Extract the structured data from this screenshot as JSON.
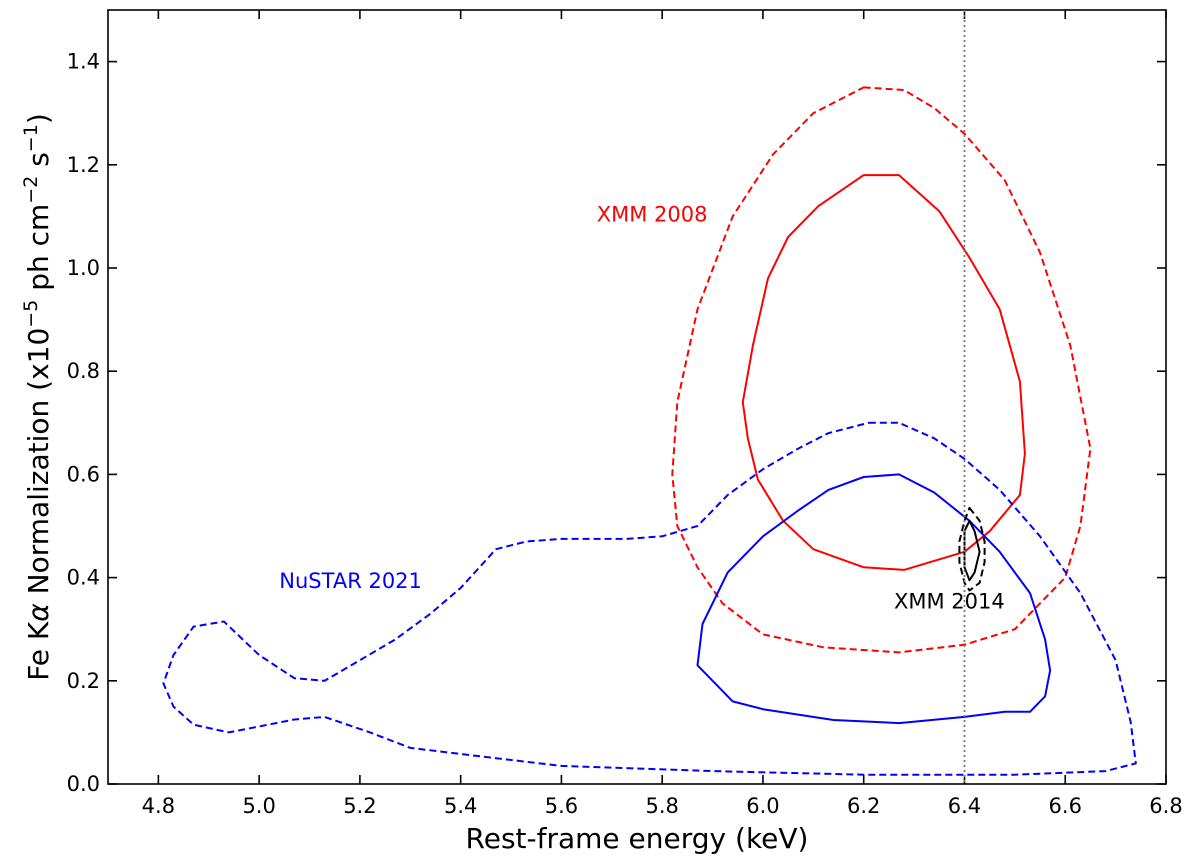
{
  "chart_data": {
    "type": "contour",
    "title": "",
    "xlabel": "Rest-frame energy (keV)",
    "ylabel_parts": {
      "prefix": "Fe K",
      "alpha": "α",
      "middle": " Normalization (x10",
      "exp1": "−5",
      "unit1": " ph cm",
      "exp2": "−2",
      "unit2": " s",
      "exp3": "−1",
      "suffix": ")"
    },
    "xlim": [
      4.7,
      6.8
    ],
    "ylim": [
      0.0,
      1.5
    ],
    "xticks": [
      "4.8",
      "5.0",
      "5.2",
      "5.4",
      "5.6",
      "5.8",
      "6.0",
      "6.2",
      "6.4",
      "6.6",
      "6.8"
    ],
    "yticks": [
      "0.0",
      "0.2",
      "0.4",
      "0.6",
      "0.8",
      "1.0",
      "1.2",
      "1.4"
    ],
    "reference_line": {
      "x": 6.4,
      "style": "dotted",
      "color": "#777777"
    },
    "annotations": [
      {
        "text": "XMM 2008",
        "x": 5.67,
        "y": 1.09,
        "color": "#ff0000"
      },
      {
        "text": "NuSTAR 2021",
        "x": 5.04,
        "y": 0.38,
        "color": "#0000ff"
      },
      {
        "text": "XMM 2014",
        "x": 6.26,
        "y": 0.34,
        "color": "#000000"
      }
    ],
    "series": [
      {
        "name": "XMM 2008 (outer, dashed)",
        "color": "#ff0000",
        "dash": true,
        "points": [
          [
            6.2,
            1.35
          ],
          [
            6.28,
            1.345
          ],
          [
            6.34,
            1.31
          ],
          [
            6.4,
            1.26
          ],
          [
            6.48,
            1.17
          ],
          [
            6.55,
            1.03
          ],
          [
            6.61,
            0.85
          ],
          [
            6.65,
            0.65
          ],
          [
            6.63,
            0.5
          ],
          [
            6.6,
            0.4
          ],
          [
            6.55,
            0.35
          ],
          [
            6.5,
            0.3
          ],
          [
            6.4,
            0.27
          ],
          [
            6.27,
            0.255
          ],
          [
            6.12,
            0.265
          ],
          [
            6.0,
            0.29
          ],
          [
            5.92,
            0.35
          ],
          [
            5.87,
            0.42
          ],
          [
            5.83,
            0.5
          ],
          [
            5.82,
            0.6
          ],
          [
            5.83,
            0.74
          ],
          [
            5.87,
            0.92
          ],
          [
            5.94,
            1.1
          ],
          [
            6.02,
            1.22
          ],
          [
            6.1,
            1.3
          ],
          [
            6.2,
            1.35
          ]
        ]
      },
      {
        "name": "XMM 2008 (inner, solid)",
        "color": "#ff0000",
        "dash": false,
        "points": [
          [
            6.2,
            1.18
          ],
          [
            6.27,
            1.18
          ],
          [
            6.35,
            1.11
          ],
          [
            6.41,
            1.02
          ],
          [
            6.47,
            0.92
          ],
          [
            6.51,
            0.78
          ],
          [
            6.52,
            0.64
          ],
          [
            6.51,
            0.56
          ],
          [
            6.45,
            0.49
          ],
          [
            6.4,
            0.45
          ],
          [
            6.28,
            0.415
          ],
          [
            6.2,
            0.42
          ],
          [
            6.1,
            0.455
          ],
          [
            6.04,
            0.51
          ],
          [
            5.99,
            0.59
          ],
          [
            5.97,
            0.67
          ],
          [
            5.96,
            0.74
          ],
          [
            5.98,
            0.85
          ],
          [
            6.01,
            0.98
          ],
          [
            6.05,
            1.06
          ],
          [
            6.11,
            1.12
          ],
          [
            6.2,
            1.18
          ]
        ]
      },
      {
        "name": "NuSTAR 2021 (outer, dashed)",
        "color": "#0000ff",
        "dash": true,
        "points": [
          [
            6.21,
            0.7
          ],
          [
            6.27,
            0.7
          ],
          [
            6.34,
            0.67
          ],
          [
            6.4,
            0.63
          ],
          [
            6.47,
            0.57
          ],
          [
            6.55,
            0.48
          ],
          [
            6.63,
            0.37
          ],
          [
            6.7,
            0.24
          ],
          [
            6.73,
            0.12
          ],
          [
            6.74,
            0.04
          ],
          [
            6.68,
            0.025
          ],
          [
            6.5,
            0.018
          ],
          [
            6.2,
            0.018
          ],
          [
            5.9,
            0.025
          ],
          [
            5.6,
            0.035
          ],
          [
            5.47,
            0.05
          ],
          [
            5.3,
            0.07
          ],
          [
            5.22,
            0.1
          ],
          [
            5.13,
            0.13
          ],
          [
            5.07,
            0.125
          ],
          [
            4.94,
            0.1
          ],
          [
            4.87,
            0.115
          ],
          [
            4.83,
            0.15
          ],
          [
            4.81,
            0.195
          ],
          [
            4.83,
            0.25
          ],
          [
            4.87,
            0.305
          ],
          [
            4.93,
            0.315
          ],
          [
            5.0,
            0.25
          ],
          [
            5.07,
            0.205
          ],
          [
            5.13,
            0.2
          ],
          [
            5.2,
            0.24
          ],
          [
            5.27,
            0.28
          ],
          [
            5.34,
            0.33
          ],
          [
            5.4,
            0.38
          ],
          [
            5.47,
            0.455
          ],
          [
            5.53,
            0.47
          ],
          [
            5.6,
            0.475
          ],
          [
            5.73,
            0.475
          ],
          [
            5.8,
            0.48
          ],
          [
            5.87,
            0.5
          ],
          [
            5.93,
            0.56
          ],
          [
            6.0,
            0.61
          ],
          [
            6.07,
            0.65
          ],
          [
            6.13,
            0.68
          ],
          [
            6.21,
            0.7
          ]
        ]
      },
      {
        "name": "NuSTAR 2021 (inner, solid)",
        "color": "#0000ff",
        "dash": false,
        "points": [
          [
            6.2,
            0.595
          ],
          [
            6.27,
            0.6
          ],
          [
            6.34,
            0.565
          ],
          [
            6.41,
            0.51
          ],
          [
            6.47,
            0.45
          ],
          [
            6.53,
            0.37
          ],
          [
            6.56,
            0.28
          ],
          [
            6.57,
            0.22
          ],
          [
            6.56,
            0.17
          ],
          [
            6.53,
            0.14
          ],
          [
            6.48,
            0.14
          ],
          [
            6.4,
            0.13
          ],
          [
            6.27,
            0.118
          ],
          [
            6.14,
            0.124
          ],
          [
            6.0,
            0.145
          ],
          [
            5.94,
            0.16
          ],
          [
            5.9,
            0.2
          ],
          [
            5.87,
            0.23
          ],
          [
            5.88,
            0.31
          ],
          [
            5.93,
            0.41
          ],
          [
            6.0,
            0.48
          ],
          [
            6.07,
            0.53
          ],
          [
            6.13,
            0.57
          ],
          [
            6.2,
            0.595
          ]
        ]
      },
      {
        "name": "XMM 2014 (outer, dashed)",
        "color": "#000000",
        "dash": true,
        "points": [
          [
            6.41,
            0.535
          ],
          [
            6.43,
            0.51
          ],
          [
            6.44,
            0.47
          ],
          [
            6.44,
            0.43
          ],
          [
            6.43,
            0.39
          ],
          [
            6.41,
            0.375
          ],
          [
            6.4,
            0.39
          ],
          [
            6.39,
            0.43
          ],
          [
            6.39,
            0.47
          ],
          [
            6.4,
            0.51
          ],
          [
            6.41,
            0.535
          ]
        ]
      },
      {
        "name": "XMM 2014 (inner, solid)",
        "color": "#000000",
        "dash": false,
        "points": [
          [
            6.41,
            0.51
          ],
          [
            6.42,
            0.49
          ],
          [
            6.43,
            0.45
          ],
          [
            6.42,
            0.41
          ],
          [
            6.41,
            0.395
          ],
          [
            6.4,
            0.42
          ],
          [
            6.4,
            0.46
          ],
          [
            6.4,
            0.49
          ],
          [
            6.41,
            0.51
          ]
        ]
      }
    ]
  }
}
